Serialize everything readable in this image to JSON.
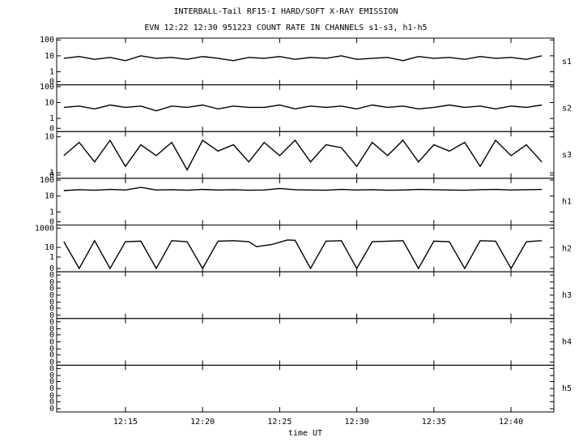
{
  "chart_data": [
    {
      "type": "line",
      "title": "INTERBALL-Tail RF15-I HARD/SOFT X-RAY EMISSION",
      "subtitle": "EVN 12:22 12:30 951223  COUNT RATE IN CHANNELS s1-s3, h1-h5",
      "name": "s1",
      "log_scale": true,
      "color": "#000000",
      "ylim": [
        0.15,
        130
      ],
      "yticks": [
        100,
        10,
        1,
        0
      ],
      "x": [
        11,
        12,
        13,
        14,
        15,
        16,
        17,
        18,
        19,
        20,
        21,
        22,
        23,
        24,
        25,
        26,
        27,
        28,
        29,
        30,
        31,
        32,
        33,
        34,
        35,
        36,
        37,
        38,
        39,
        40,
        41,
        42
      ],
      "values": [
        7,
        9,
        6,
        8,
        5,
        10,
        7,
        8,
        6,
        9,
        7,
        5,
        8,
        7,
        9,
        6,
        8,
        7,
        10,
        6,
        7,
        8,
        5,
        9,
        7,
        8,
        6,
        9,
        7,
        8,
        6,
        10
      ]
    },
    {
      "type": "line",
      "name": "s2",
      "log_scale": true,
      "color": "#000000",
      "ylim": [
        0.15,
        130
      ],
      "yticks": [
        100,
        10,
        1,
        0
      ],
      "x": [
        11,
        12,
        13,
        14,
        15,
        16,
        17,
        18,
        19,
        20,
        21,
        22,
        23,
        24,
        25,
        26,
        27,
        28,
        29,
        30,
        31,
        32,
        33,
        34,
        35,
        36,
        37,
        38,
        39,
        40,
        41,
        42
      ],
      "values": [
        5,
        6,
        4,
        7,
        5,
        6,
        3,
        6,
        5,
        7,
        4,
        6,
        5,
        5,
        7,
        4,
        6,
        5,
        6,
        4,
        7,
        5,
        6,
        4,
        5,
        7,
        5,
        6,
        4,
        6,
        5,
        7
      ]
    },
    {
      "type": "line",
      "name": "s3",
      "log_scale": true,
      "color": "#000000",
      "ylim": [
        0.7,
        14
      ],
      "yticks": [
        10,
        1,
        0
      ],
      "x": [
        11,
        12,
        13,
        14,
        15,
        16,
        17,
        18,
        19,
        20,
        21,
        22,
        23,
        24,
        25,
        26,
        27,
        28,
        29,
        30,
        31,
        32,
        33,
        34,
        35,
        36,
        37,
        38,
        39,
        40,
        41,
        42
      ],
      "values": [
        3,
        7,
        2,
        8,
        1.5,
        6,
        3,
        7,
        1.2,
        8,
        4,
        6,
        2,
        7,
        3,
        8,
        2,
        6,
        5,
        1.5,
        7,
        3,
        8,
        2,
        6,
        4,
        7,
        1.5,
        8,
        3,
        6,
        2
      ]
    },
    {
      "type": "line",
      "name": "h1",
      "log_scale": true,
      "color": "#000000",
      "ylim": [
        0.15,
        130
      ],
      "yticks": [
        100,
        10,
        1,
        0
      ],
      "x": [
        11,
        12,
        13,
        14,
        15,
        16,
        17,
        18,
        19,
        20,
        21,
        22,
        23,
        24,
        25,
        26,
        27,
        28,
        29,
        30,
        31,
        32,
        33,
        34,
        35,
        36,
        37,
        38,
        39,
        40,
        41,
        42
      ],
      "values": [
        22,
        25,
        23,
        26,
        24,
        35,
        24,
        25,
        23,
        26,
        24,
        25,
        23,
        24,
        30,
        25,
        24,
        23,
        26,
        24,
        25,
        23,
        24,
        26,
        25,
        24,
        23,
        25,
        26,
        24,
        25,
        26
      ]
    },
    {
      "type": "line",
      "name": "h2",
      "log_scale": true,
      "color": "#000000",
      "ylim": [
        0.03,
        2100
      ],
      "yticks": [
        1000,
        10,
        1,
        0
      ],
      "x": [
        11,
        12,
        13,
        14,
        15,
        16,
        17,
        18,
        19,
        20,
        21,
        22,
        23,
        23.5,
        24.5,
        25.5,
        26,
        27,
        28,
        29,
        30,
        31,
        32,
        33,
        34,
        35,
        36,
        37,
        38,
        39,
        40,
        41,
        42
      ],
      "values": [
        40,
        0,
        50,
        0,
        40,
        45,
        0,
        50,
        40,
        0,
        45,
        50,
        40,
        12,
        20,
        60,
        55,
        0,
        45,
        50,
        0,
        40,
        45,
        50,
        0,
        45,
        40,
        0,
        50,
        45,
        0,
        40,
        50
      ]
    },
    {
      "type": "line",
      "name": "h3",
      "log_scale": false,
      "ylim": [
        0,
        0.4
      ],
      "yticks": [
        0,
        {
          "value": 0.07,
          "label": "0"
        },
        {
          "value": 0.13,
          "label": "0"
        },
        {
          "value": 0.2,
          "label": "0"
        },
        {
          "value": 0.27,
          "label": "0"
        },
        {
          "value": 0.33,
          "label": "0"
        },
        {
          "value": 0.4,
          "label": "0"
        }
      ]
    },
    {
      "type": "line",
      "name": "h4",
      "log_scale": false,
      "ylim": [
        0,
        0.4
      ],
      "yticks": [
        0,
        {
          "value": 0.07,
          "label": "0"
        },
        {
          "value": 0.13,
          "label": "0"
        },
        {
          "value": 0.2,
          "label": "0"
        },
        {
          "value": 0.27,
          "label": "0"
        },
        {
          "value": 0.33,
          "label": "0"
        },
        {
          "value": 0.4,
          "label": "0"
        }
      ]
    },
    {
      "type": "line",
      "name": "h5",
      "log_scale": false,
      "xlabel": "time UT",
      "ylim": [
        0,
        0.4
      ],
      "yticks": [
        0,
        {
          "value": 0.07,
          "label": "0"
        },
        {
          "value": 0.13,
          "label": "0"
        },
        {
          "value": 0.2,
          "label": "0"
        },
        {
          "value": 0.27,
          "label": "0"
        },
        {
          "value": 0.33,
          "label": "0"
        },
        {
          "value": 0.4,
          "label": "0"
        }
      ],
      "xlim": [
        10.54,
        42.78
      ],
      "xticks": [
        {
          "value": 15,
          "label": "12:15"
        },
        {
          "value": 20,
          "label": "12:20"
        },
        {
          "value": 25,
          "label": "12:25"
        },
        {
          "value": 30,
          "label": "12:30"
        },
        {
          "value": 35,
          "label": "12:35"
        },
        {
          "value": 40,
          "label": "12:40"
        }
      ]
    }
  ]
}
